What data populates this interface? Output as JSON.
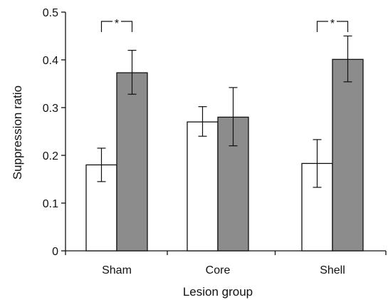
{
  "chart_data": {
    "type": "bar",
    "title": "",
    "xlabel": "Lesion group",
    "ylabel": "Suppression ratio",
    "categories": [
      "Sham",
      "Core",
      "Shell"
    ],
    "ylim": [
      0,
      0.5
    ],
    "yticks": [
      0,
      0.1,
      0.2,
      0.3,
      0.4,
      0.5
    ],
    "ytick_labels": [
      "0",
      "0.1",
      "0.2",
      "0.3",
      "0.4",
      "0.5"
    ],
    "grid": false,
    "legend": "none",
    "series": [
      {
        "color": "#ffffff",
        "values": [
          0.18,
          0.27,
          0.183
        ],
        "error_low": [
          0.145,
          0.24,
          0.133
        ],
        "error_high": [
          0.215,
          0.302,
          0.233
        ]
      },
      {
        "color": "#8c8c8c",
        "values": [
          0.373,
          0.28,
          0.401
        ],
        "error_low": [
          0.328,
          0.22,
          0.354
        ],
        "error_high": [
          0.42,
          0.342,
          0.45
        ]
      }
    ],
    "annotations": [
      {
        "category": "Sham",
        "text": "*"
      },
      {
        "category": "Shell",
        "text": "*"
      }
    ]
  }
}
